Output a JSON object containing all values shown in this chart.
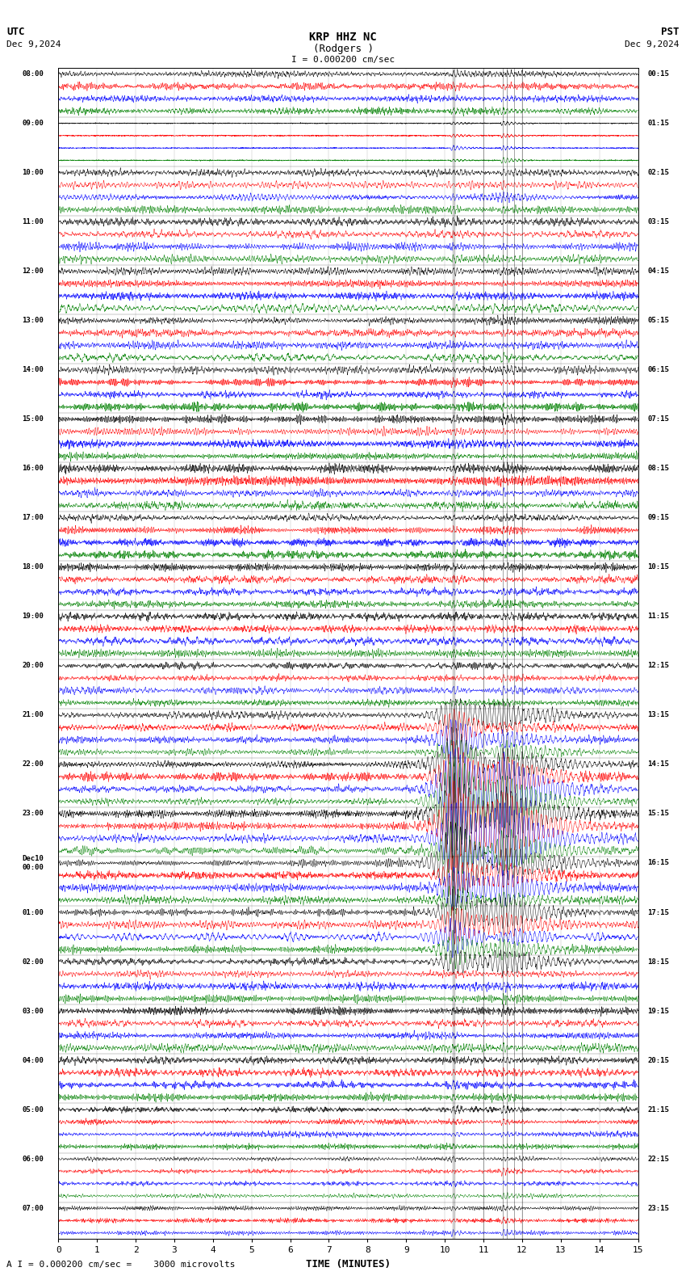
{
  "title_line1": "KRP HHZ NC",
  "title_line2": "(Rodgers )",
  "scale_label": "I = 0.000200 cm/sec",
  "utc_label": "UTC",
  "pst_label": "PST",
  "date_left": "Dec 9,2024",
  "date_right": "Dec 9,2024",
  "xlabel": "TIME (MINUTES)",
  "footer": "A I = 0.000200 cm/sec =    3000 microvolts",
  "xlim": [
    0,
    15
  ],
  "xticklabels": [
    0,
    1,
    2,
    3,
    4,
    5,
    6,
    7,
    8,
    9,
    10,
    11,
    12,
    13,
    14,
    15
  ],
  "utc_times_labeled": {
    "0": "08:00",
    "4": "09:00",
    "8": "10:00",
    "12": "11:00",
    "16": "12:00",
    "20": "13:00",
    "24": "14:00",
    "28": "15:00",
    "32": "16:00",
    "36": "17:00",
    "40": "18:00",
    "44": "19:00",
    "48": "20:00",
    "52": "21:00",
    "56": "22:00",
    "60": "23:00",
    "64": "Dec10\n00:00",
    "68": "01:00",
    "72": "02:00",
    "76": "03:00",
    "80": "04:00",
    "84": "05:00",
    "88": "06:00",
    "92": "07:00"
  },
  "pst_times_labeled": {
    "0": "00:15",
    "4": "01:15",
    "8": "02:15",
    "12": "03:15",
    "16": "04:15",
    "20": "05:15",
    "24": "06:15",
    "28": "07:15",
    "32": "08:15",
    "36": "09:15",
    "40": "10:15",
    "44": "11:15",
    "48": "12:15",
    "52": "13:15",
    "56": "14:15",
    "60": "15:15",
    "64": "16:15",
    "68": "17:15",
    "72": "18:15",
    "76": "19:15",
    "80": "20:15",
    "84": "21:15",
    "88": "22:15",
    "92": "23:15"
  },
  "n_rows": 95,
  "colors_cycle": [
    "black",
    "red",
    "blue",
    "green"
  ],
  "bg_color": "white",
  "fig_width": 8.5,
  "fig_height": 15.84,
  "dpi": 100
}
